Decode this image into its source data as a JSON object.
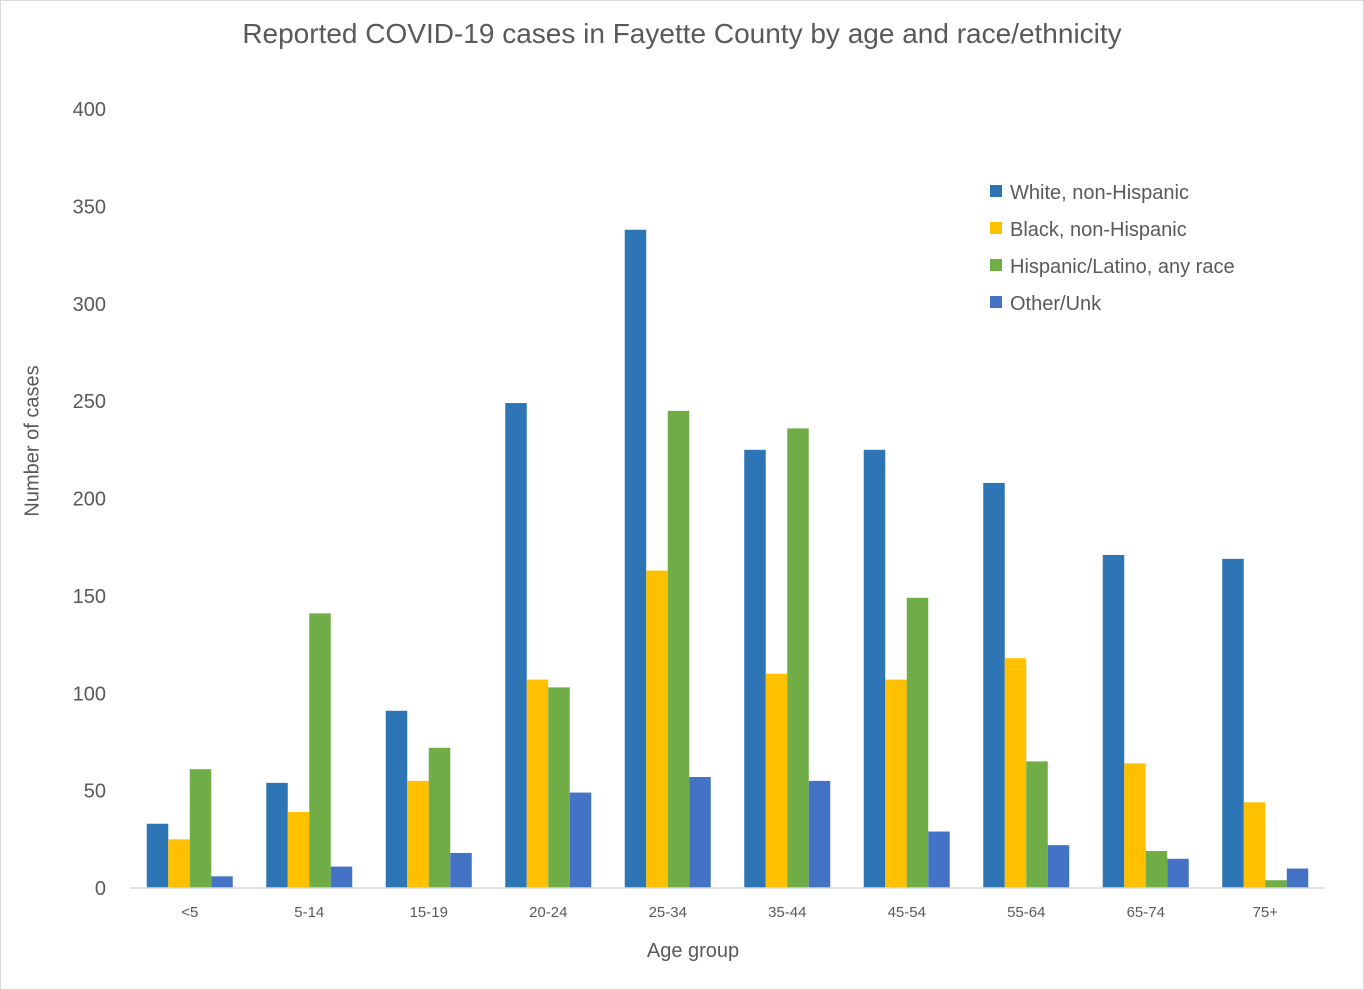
{
  "chart_data": {
    "type": "bar",
    "title": "Reported COVID-19 cases in Fayette County by age and race/ethnicity",
    "xlabel": "Age group",
    "ylabel": "Number of cases",
    "ylim": [
      0,
      400
    ],
    "yticks": [
      0,
      50,
      100,
      150,
      200,
      250,
      300,
      350,
      400
    ],
    "grid": false,
    "legend_position": "top-right",
    "categories": [
      "<5",
      "5-14",
      "15-19",
      "20-24",
      "25-34",
      "35-44",
      "45-54",
      "55-64",
      "65-74",
      "75+"
    ],
    "series": [
      {
        "name": "White, non-Hispanic",
        "color": "#2E75B6",
        "values": [
          33,
          54,
          91,
          249,
          338,
          225,
          225,
          208,
          171,
          169
        ]
      },
      {
        "name": "Black, non-Hispanic",
        "color": "#FFC000",
        "values": [
          25,
          39,
          55,
          107,
          163,
          110,
          107,
          118,
          64,
          44
        ]
      },
      {
        "name": "Hispanic/Latino, any race",
        "color": "#70AD47",
        "values": [
          61,
          141,
          72,
          103,
          245,
          236,
          149,
          65,
          19,
          4
        ]
      },
      {
        "name": "Other/Unk",
        "color": "#4472C4",
        "values": [
          6,
          11,
          18,
          49,
          57,
          55,
          29,
          22,
          15,
          10
        ]
      }
    ]
  }
}
